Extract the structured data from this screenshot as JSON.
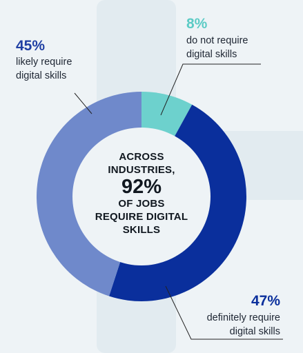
{
  "chart_data": {
    "type": "pie",
    "variant": "donut",
    "slices": [
      {
        "value": 8,
        "percent_label": "8%",
        "description": [
          "do not require",
          "digital skills"
        ],
        "color": "#6dd1cd"
      },
      {
        "value": 47,
        "percent_label": "47%",
        "description": [
          "definitely require",
          "digital skills"
        ],
        "color": "#0a2f9c"
      },
      {
        "value": 45,
        "percent_label": "45%",
        "description": [
          "likely require",
          "digital skills"
        ],
        "color": "#6f89cb"
      }
    ],
    "center": {
      "line1": "ACROSS",
      "line2": "INDUSTRIES,",
      "big": "92%",
      "line3": "OF JOBS",
      "line4": "REQUIRE DIGITAL",
      "line5": "SKILLS"
    }
  },
  "colors": {
    "background": "#eef3f6",
    "background_shape": "#e2ebf0",
    "leader_line": "#222222",
    "center_fill": "#eef3f6"
  }
}
